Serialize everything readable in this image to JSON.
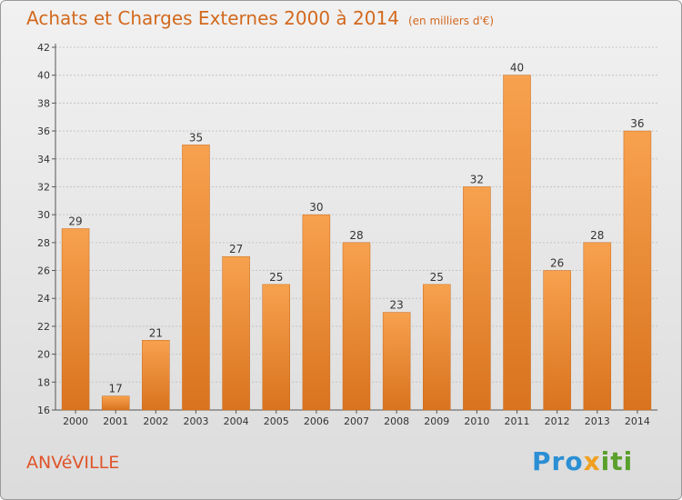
{
  "title": "Achats et Charges Externes 2000 à 2014",
  "unit_label": "(en milliers d'€)",
  "place": "ANVéVILLE",
  "brand": {
    "p1": "Pro",
    "p2": "x",
    "p3": "iti"
  },
  "colors": {
    "bar_light": "#f7a14e",
    "bar_dark": "#d9731f",
    "title": "#d2691e",
    "place": "#e0542a"
  },
  "chart_data": {
    "type": "bar",
    "categories": [
      "2000",
      "2001",
      "2002",
      "2003",
      "2004",
      "2005",
      "2006",
      "2007",
      "2008",
      "2009",
      "2010",
      "2011",
      "2012",
      "2013",
      "2014"
    ],
    "values": [
      29,
      17,
      21,
      35,
      27,
      25,
      30,
      28,
      23,
      25,
      32,
      40,
      26,
      28,
      36
    ],
    "ylim": [
      16,
      42
    ],
    "yticks": [
      16,
      18,
      20,
      22,
      24,
      26,
      28,
      30,
      32,
      34,
      36,
      38,
      40,
      42
    ],
    "grid": true,
    "legend": "none"
  }
}
